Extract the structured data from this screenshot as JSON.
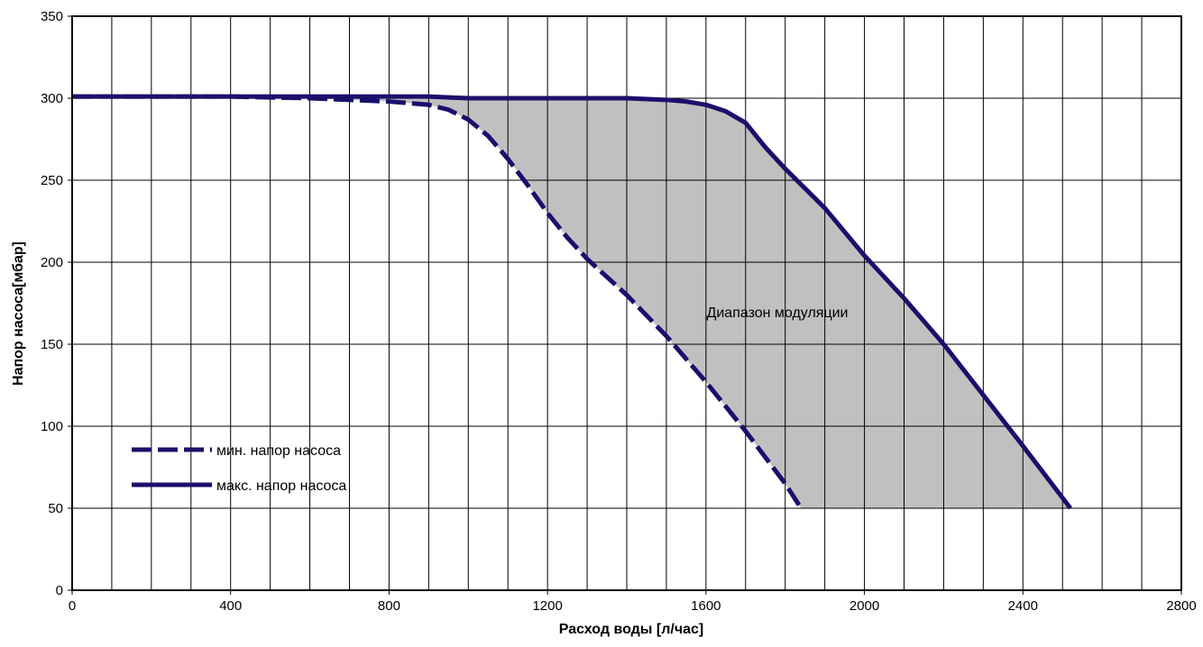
{
  "chart_data": {
    "type": "line",
    "title": "",
    "xlabel": "Расход воды [л/час]",
    "ylabel": "Напор  насоса[мбар]",
    "xlim": [
      0,
      2800
    ],
    "ylim": [
      0,
      350
    ],
    "x_ticks": [
      0,
      400,
      800,
      1200,
      1600,
      2000,
      2400,
      2800
    ],
    "x_tick_labels": [
      "0",
      "400",
      "800",
      "1200",
      "1600",
      "2000",
      "2400",
      "2800"
    ],
    "y_ticks": [
      0,
      50,
      100,
      150,
      200,
      250,
      300,
      350
    ],
    "y_tick_labels": [
      "0",
      "50",
      "100",
      "150",
      "200",
      "250",
      "300",
      "350"
    ],
    "grid": true,
    "legend_position": "bottom-left",
    "annotation": "Диапазон  модуляции",
    "series": [
      {
        "name": "мин. напор насоса",
        "style": "dashed",
        "color": "#1a0f6b",
        "x": [
          0,
          100,
          200,
          400,
          600,
          700,
          800,
          900,
          950,
          1000,
          1050,
          1100,
          1150,
          1200,
          1250,
          1300,
          1400,
          1500,
          1600,
          1700,
          1800,
          1840
        ],
        "y": [
          301,
          301,
          301,
          301,
          300,
          299,
          298,
          296,
          293,
          287,
          277,
          263,
          247,
          230,
          215,
          202,
          180,
          155,
          127,
          97,
          65,
          50
        ]
      },
      {
        "name": "макс. напор насоса",
        "style": "solid",
        "color": "#1a0f6b",
        "x": [
          0,
          200,
          400,
          600,
          800,
          900,
          1000,
          1200,
          1400,
          1500,
          1550,
          1600,
          1650,
          1700,
          1750,
          1800,
          1900,
          2000,
          2100,
          2200,
          2300,
          2400,
          2520
        ],
        "y": [
          301,
          301,
          301,
          301,
          301,
          301,
          300,
          300,
          300,
          299,
          298,
          296,
          292,
          285,
          270,
          257,
          233,
          204,
          178,
          150,
          119,
          88,
          50
        ]
      }
    ],
    "fill_between": {
      "color": "#c0c0c0",
      "y_floor": 50
    }
  }
}
